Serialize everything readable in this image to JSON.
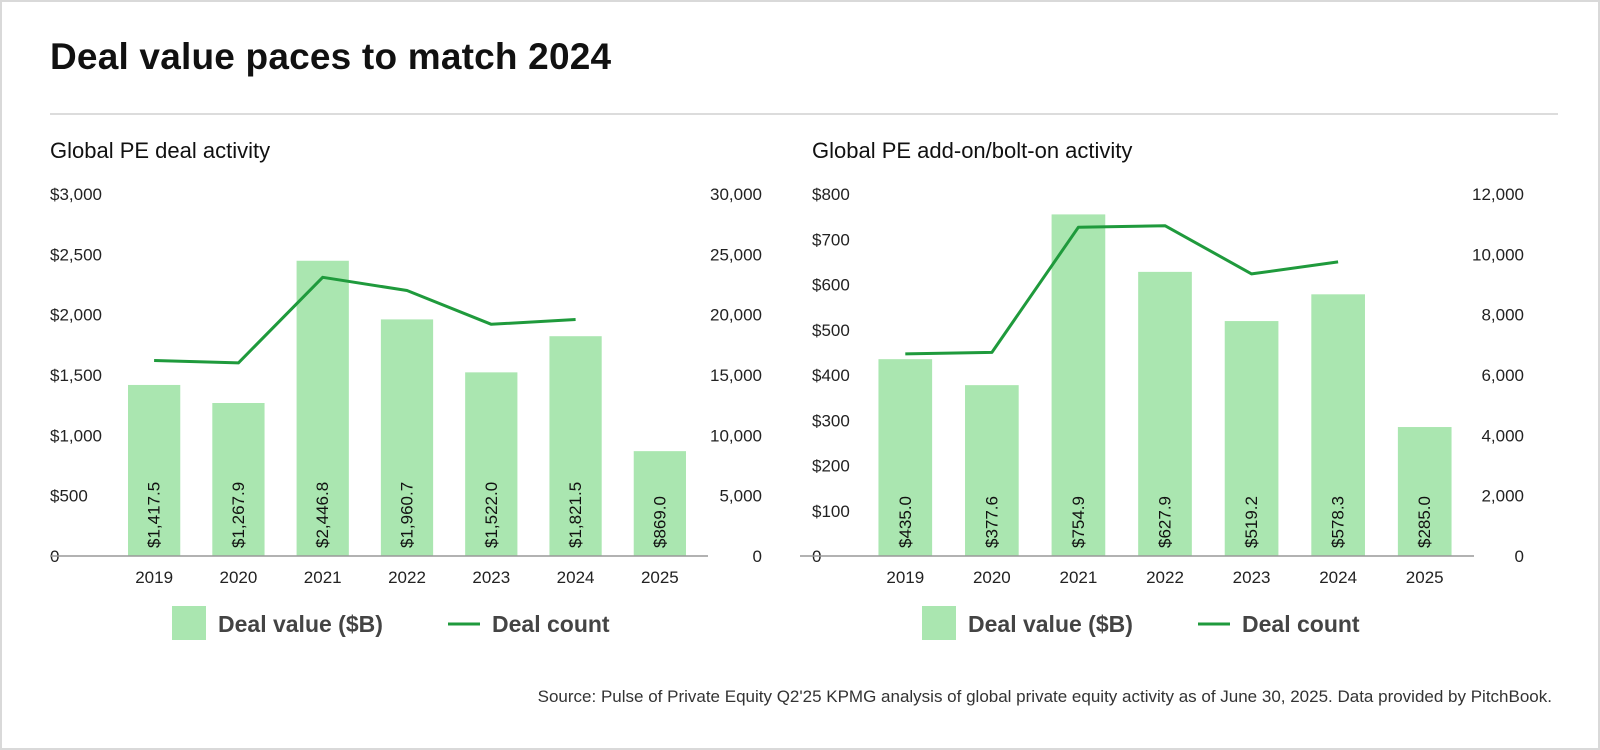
{
  "title": "Deal value paces to match 2024",
  "source": "Source: Pulse of Private Equity Q2'25 KPMG analysis of global private equity activity as of June 30, 2025. Data provided by PitchBook.",
  "colors": {
    "bar": "#aae6b0",
    "line": "#1f9a3c",
    "axis": "#999999",
    "text": "#222222"
  },
  "chart_data": [
    {
      "type": "bar",
      "title": "Global PE deal activity",
      "categories": [
        "2019",
        "2020",
        "2021",
        "2022",
        "2023",
        "2024",
        "2025"
      ],
      "series": [
        {
          "name": "Deal value ($B)",
          "type": "bar",
          "axis": "left",
          "values": [
            1417.5,
            1267.9,
            2446.8,
            1960.7,
            1522.0,
            1821.5,
            869.0
          ],
          "labels": [
            "$1,417.5",
            "$1,267.9",
            "$2,446.8",
            "$1,960.7",
            "$1,522.0",
            "$1,821.5",
            "$869.0"
          ]
        },
        {
          "name": "Deal count",
          "type": "line",
          "axis": "right",
          "values": [
            16200,
            16000,
            23100,
            22000,
            19200,
            19600,
            null
          ]
        }
      ],
      "y_left": {
        "min": 0,
        "max": 3000,
        "ticks": [
          "0",
          "$500",
          "$1,000",
          "$1,500",
          "$2,000",
          "$2,500",
          "$3,000"
        ]
      },
      "y_right": {
        "min": 0,
        "max": 30000,
        "ticks": [
          "0",
          "5,000",
          "10,000",
          "15,000",
          "20,000",
          "25,000",
          "30,000"
        ]
      },
      "legend_position": "bottom",
      "grid": false
    },
    {
      "type": "bar",
      "title": "Global PE add-on/bolt-on activity",
      "categories": [
        "2019",
        "2020",
        "2021",
        "2022",
        "2023",
        "2024",
        "2025"
      ],
      "series": [
        {
          "name": "Deal value ($B)",
          "type": "bar",
          "axis": "left",
          "values": [
            435.0,
            377.6,
            754.9,
            627.9,
            519.2,
            578.3,
            285.0
          ],
          "labels": [
            "$435.0",
            "$377.6",
            "$754.9",
            "$627.9",
            "$519.2",
            "$578.3",
            "$285.0"
          ]
        },
        {
          "name": "Deal count",
          "type": "line",
          "axis": "right",
          "values": [
            6700,
            6750,
            10900,
            10950,
            9350,
            9750,
            null
          ]
        }
      ],
      "y_left": {
        "min": 0,
        "max": 800,
        "ticks": [
          "0",
          "$100",
          "$200",
          "$300",
          "$400",
          "$500",
          "$600",
          "$700",
          "$800"
        ]
      },
      "y_right": {
        "min": 0,
        "max": 12000,
        "ticks": [
          "0",
          "2,000",
          "4,000",
          "6,000",
          "8,000",
          "10,000",
          "12,000"
        ]
      },
      "legend_position": "bottom",
      "grid": false
    }
  ]
}
